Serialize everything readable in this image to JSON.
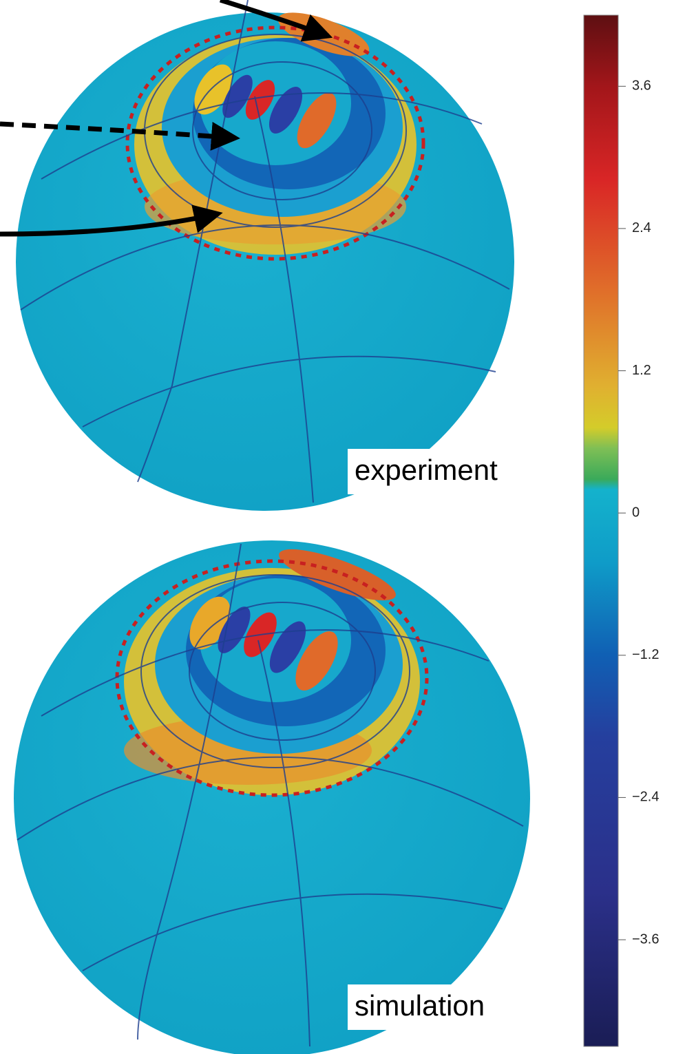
{
  "chart_data": {
    "type": "colorbar",
    "panels": [
      "experiment",
      "simulation"
    ],
    "zlim": [
      -4.5,
      4.2
    ],
    "zticks": [
      3.6,
      2.4,
      1.2,
      0,
      {
        "value": -1.2,
        "label": "−1.2"
      },
      {
        "value": -2.4,
        "label": "−2.4"
      },
      {
        "value": -3.6,
        "label": "−3.6"
      }
    ]
  }
}
